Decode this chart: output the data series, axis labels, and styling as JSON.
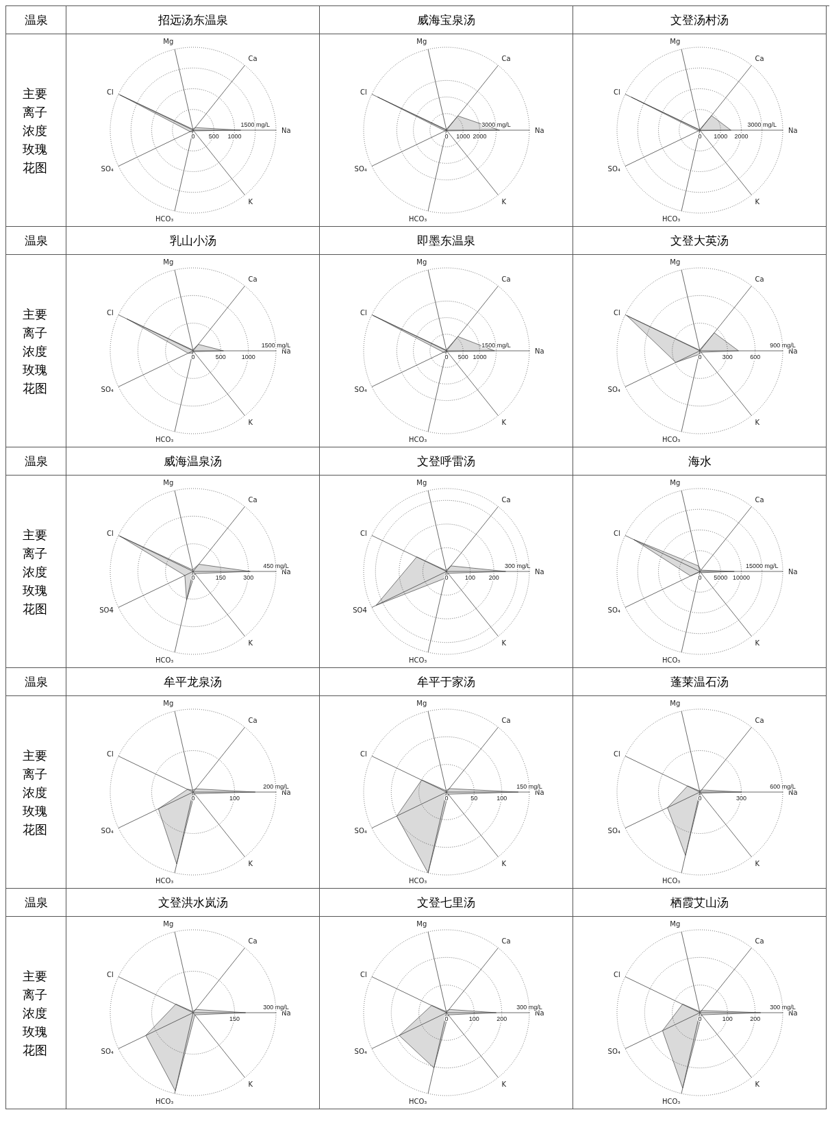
{
  "chart_data": [
    {
      "type": "radar",
      "title": "招远汤东温泉",
      "annotations": [
        "温泉",
        "主要离子浓度玫瑰花图"
      ],
      "categories": [
        "Mg",
        "Ca",
        "Na",
        "K",
        "HCO₃",
        "SO₄",
        "Cl"
      ],
      "series": [
        {
          "color": "#444444",
          "values": [
            30,
            80,
            1150,
            20,
            40,
            80,
            1950
          ]
        }
      ],
      "ylim": [
        0,
        2000
      ],
      "yticks": [
        0,
        500,
        1000,
        {
          "value": 1500,
          "label": "1500 mg/L"
        }
      ],
      "grid": true
    },
    {
      "type": "radar",
      "title": "威海宝泉汤",
      "categories": [
        "Mg",
        "Ca",
        "Na",
        "K",
        "HCO₃",
        "SO₄",
        "Cl"
      ],
      "series": [
        {
          "color": "#444444",
          "values": [
            50,
            1100,
            3200,
            50,
            50,
            100,
            4600
          ]
        }
      ],
      "ylim": [
        0,
        5000
      ],
      "yticks": [
        0,
        1000,
        2000,
        {
          "value": 3000,
          "label": "3000 mg/L"
        }
      ],
      "grid": true
    },
    {
      "type": "radar",
      "title": "文登汤村汤",
      "categories": [
        "Mg",
        "Ca",
        "Na",
        "K",
        "HCO₃",
        "SO₄",
        "Cl"
      ],
      "series": [
        {
          "color": "#444444",
          "values": [
            30,
            900,
            1500,
            30,
            50,
            80,
            3650
          ]
        }
      ],
      "ylim": [
        0,
        4000
      ],
      "yticks": [
        0,
        1000,
        2000,
        {
          "value": 3000,
          "label": "3000 mg/L"
        }
      ],
      "grid": true
    },
    {
      "type": "radar",
      "title": "乳山小汤",
      "annotations": [
        "温泉",
        "主要离子浓度玫瑰花图"
      ],
      "categories": [
        "Mg",
        "Ca",
        "Na",
        "K",
        "HCO₃",
        "SO₄",
        "Cl"
      ],
      "series": [
        {
          "color": "#444444",
          "values": [
            20,
            150,
            550,
            20,
            40,
            100,
            1330
          ]
        }
      ],
      "ylim": [
        0,
        1500
      ],
      "yticks": [
        0,
        500,
        1000,
        {
          "value": 1500,
          "label": "1500 mg/L"
        }
      ],
      "grid": true
    },
    {
      "type": "radar",
      "title": "即墨东温泉",
      "categories": [
        "Mg",
        "Ca",
        "Na",
        "K",
        "HCO₃",
        "SO₄",
        "Cl"
      ],
      "series": [
        {
          "color": "#444444",
          "values": [
            30,
            550,
            1450,
            30,
            50,
            100,
            2450
          ]
        }
      ],
      "ylim": [
        0,
        2500
      ],
      "yticks": [
        0,
        500,
        1000,
        {
          "value": 1500,
          "label": "1500 mg/L"
        }
      ],
      "grid": true
    },
    {
      "type": "radar",
      "title": "文登大英汤",
      "categories": [
        "Mg",
        "Ca",
        "Na",
        "K",
        "HCO₃",
        "SO₄",
        "Cl"
      ],
      "series": [
        {
          "color": "#444444",
          "values": [
            10,
            250,
            420,
            20,
            40,
            290,
            880
          ]
        }
      ],
      "ylim": [
        0,
        900
      ],
      "yticks": [
        0,
        300,
        600,
        {
          "value": 900,
          "label": "900 mg/L"
        }
      ],
      "grid": true
    },
    {
      "type": "radar",
      "title": "威海温泉汤",
      "annotations": [
        "温泉",
        "主要离子浓度玫瑰花图"
      ],
      "categories": [
        "Mg",
        "Ca",
        "Na",
        "K",
        "HCO₃",
        "SO4",
        "Cl"
      ],
      "series": [
        {
          "color": "#444444",
          "values": [
            10,
            50,
            310,
            15,
            160,
            50,
            440
          ]
        }
      ],
      "ylim": [
        0,
        450
      ],
      "yticks": [
        0,
        150,
        300,
        {
          "value": 450,
          "label": "450 mg/L"
        }
      ],
      "grid": true
    },
    {
      "type": "radar",
      "title": "文登呼雷汤",
      "categories": [
        "Mg",
        "Ca",
        "Na",
        "K",
        "HCO₃",
        "SO4",
        "Cl"
      ],
      "series": [
        {
          "color": "#444444",
          "values": [
            5,
            30,
            250,
            10,
            30,
            330,
            140
          ]
        }
      ],
      "ylim": [
        0,
        350
      ],
      "yticks": [
        0,
        100,
        200,
        {
          "value": 300,
          "label": "300 mg/L"
        }
      ],
      "grid": true
    },
    {
      "type": "radar",
      "title": "海水",
      "categories": [
        "Mg",
        "Ca",
        "Na",
        "K",
        "HCO₃",
        "SO₄",
        "Cl"
      ],
      "series": [
        {
          "color": "#444444",
          "values": [
            1300,
            400,
            8300,
            400,
            150,
            2500,
            17700
          ]
        }
      ],
      "ylim": [
        0,
        20000
      ],
      "yticks": [
        0,
        5000,
        10000,
        {
          "value": 15000,
          "label": "15000 mg/L"
        }
      ],
      "grid": true
    },
    {
      "type": "radar",
      "title": "牟平龙泉汤",
      "annotations": [
        "温泉",
        "主要离子浓度玫瑰花图"
      ],
      "categories": [
        "Mg",
        "Ca",
        "Na",
        "K",
        "HCO₃",
        "SO₄",
        "Cl"
      ],
      "series": [
        {
          "color": "#444444",
          "values": [
            5,
            10,
            150,
            5,
            178,
            93,
            15
          ]
        }
      ],
      "ylim": [
        0,
        200
      ],
      "yticks": [
        0,
        100,
        {
          "value": 200,
          "label": "200 mg/L"
        }
      ],
      "grid": true
    },
    {
      "type": "radar",
      "title": "牟平于家汤",
      "categories": [
        "Mg",
        "Ca",
        "Na",
        "K",
        "HCO₃",
        "SO₄",
        "Cl"
      ],
      "series": [
        {
          "color": "#444444",
          "values": [
            3,
            8,
            130,
            5,
            150,
            100,
            50
          ]
        }
      ],
      "ylim": [
        0,
        150
      ],
      "yticks": [
        0,
        50,
        100,
        {
          "value": 150,
          "label": "150 mg/L"
        }
      ],
      "grid": true
    },
    {
      "type": "radar",
      "title": "蓬莱温石汤",
      "categories": [
        "Mg",
        "Ca",
        "Na",
        "K",
        "HCO₃",
        "SO₄",
        "Cl"
      ],
      "series": [
        {
          "color": "#444444",
          "values": [
            10,
            20,
            300,
            10,
            470,
            260,
            100
          ]
        }
      ],
      "ylim": [
        0,
        600
      ],
      "yticks": [
        0,
        300,
        {
          "value": 600,
          "label": "600 mg/L"
        }
      ],
      "grid": true
    },
    {
      "type": "radar",
      "title": "文登洪水岚汤",
      "annotations": [
        "温泉",
        "主要离子浓度玫瑰花图"
      ],
      "categories": [
        "Mg",
        "Ca",
        "Na",
        "K",
        "HCO₃",
        "SO₄",
        "Cl"
      ],
      "series": [
        {
          "color": "#444444",
          "values": [
            5,
            15,
            190,
            10,
            290,
            190,
            70
          ]
        }
      ],
      "ylim": [
        0,
        300
      ],
      "yticks": [
        150,
        {
          "value": 300,
          "label": "300 mg/L"
        }
      ],
      "grid": true
    },
    {
      "type": "radar",
      "title": "文登七里汤",
      "categories": [
        "Mg",
        "Ca",
        "Na",
        "K",
        "HCO₃",
        "SO₄",
        "Cl"
      ],
      "series": [
        {
          "color": "#444444",
          "values": [
            5,
            15,
            180,
            10,
            205,
            190,
            60
          ]
        }
      ],
      "ylim": [
        0,
        300
      ],
      "yticks": [
        0,
        100,
        200,
        {
          "value": 300,
          "label": "300 mg/L"
        }
      ],
      "grid": true
    },
    {
      "type": "radar",
      "title": "栖霞艾山汤",
      "categories": [
        "Mg",
        "Ca",
        "Na",
        "K",
        "HCO₃",
        "SO₄",
        "Cl"
      ],
      "series": [
        {
          "color": "#444444",
          "values": [
            5,
            10,
            220,
            10,
            280,
            150,
            70
          ]
        }
      ],
      "ylim": [
        0,
        300
      ],
      "yticks": [
        0,
        100,
        200,
        {
          "value": 300,
          "label": "300 mg/L"
        }
      ],
      "grid": true
    }
  ]
}
